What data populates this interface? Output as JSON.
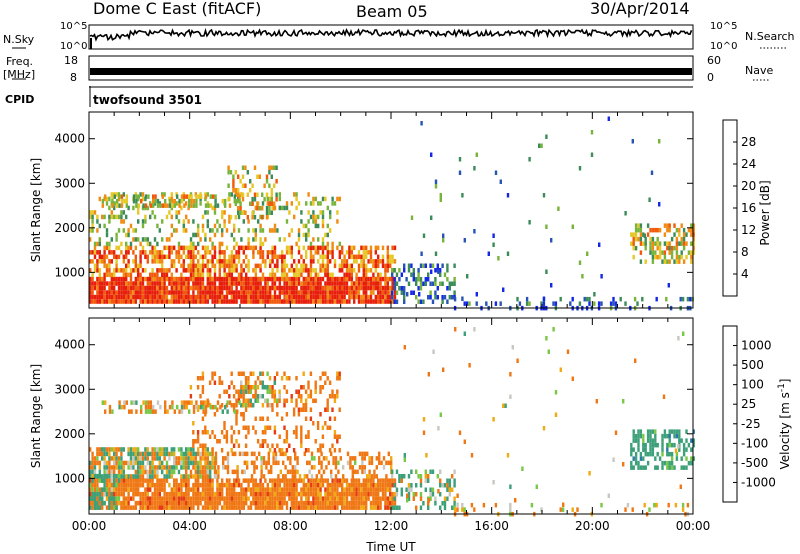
{
  "header": {
    "title": "Dome C East (fitACF)",
    "beam": "Beam 05",
    "date": "30/Apr/2014"
  },
  "top_panels": {
    "nsky_label": "N.Sky",
    "nsky_ticks": [
      "10^5",
      "10^0"
    ],
    "nsearch_label": "N.Search",
    "nsearch_ticks": [
      "10^5",
      "10^0"
    ],
    "freq_label": "Freq.",
    "freq_unit": "[MHz]",
    "freq_ticks": [
      "18",
      "8"
    ],
    "nave_label": "Nave",
    "nave_ticks": [
      "60",
      "0"
    ],
    "cpid_label": "CPID",
    "cpid_value": "twofsound 3501"
  },
  "chart_data": [
    {
      "type": "heatmap",
      "name": "power",
      "xlabel": "",
      "ylabel": "Slant Range [km]",
      "xlim": [
        0,
        24
      ],
      "ylim": [
        200,
        4600
      ],
      "yticks": [
        "1000",
        "2000",
        "3000",
        "4000"
      ],
      "colorbar": {
        "label": "Power [dB]",
        "tick_labels": [
          "28",
          "24",
          "20",
          "16",
          "12",
          "8",
          "4"
        ],
        "range": [
          0,
          32
        ],
        "colors": [
          "#1428e6",
          "#2855b4",
          "#3c8c5a",
          "#78b43c",
          "#e6c828",
          "#f08c14",
          "#f05a0a",
          "#e61e0a"
        ]
      },
      "regions": [
        {
          "t": [
            0.0,
            12.2
          ],
          "r": [
            300,
            900
          ],
          "value": 30,
          "coverage": 0.95
        },
        {
          "t": [
            0.0,
            12.2
          ],
          "r": [
            900,
            1600
          ],
          "value": 24,
          "coverage": 0.6
        },
        {
          "t": [
            0.0,
            10.0
          ],
          "r": [
            1600,
            2800
          ],
          "value": 16,
          "coverage": 0.25
        },
        {
          "t": [
            5.5,
            7.5
          ],
          "r": [
            2200,
            3400
          ],
          "value": 18,
          "coverage": 0.35
        },
        {
          "t": [
            0.5,
            6.0
          ],
          "r": [
            2500,
            2750
          ],
          "value": 18,
          "coverage": 0.5
        },
        {
          "t": [
            12.0,
            14.5
          ],
          "r": [
            300,
            1200
          ],
          "value": 7,
          "coverage": 0.4
        },
        {
          "t": [
            14.5,
            24.0
          ],
          "r": [
            200,
            450
          ],
          "value": 6,
          "coverage": 0.2
        },
        {
          "t": [
            21.5,
            24.0
          ],
          "r": [
            1200,
            2100
          ],
          "value": 18,
          "coverage": 0.5
        },
        {
          "t": [
            12.5,
            24.0
          ],
          "r": [
            450,
            4500
          ],
          "value": 8,
          "coverage": 0.012
        }
      ]
    },
    {
      "type": "heatmap",
      "name": "velocity",
      "xlabel": "Time UT",
      "ylabel": "Slant Range [km]",
      "xlim": [
        0,
        24
      ],
      "ylim": [
        200,
        4600
      ],
      "xticks": [
        "00:00",
        "04:00",
        "08:00",
        "12:00",
        "16:00",
        "20:00",
        "00:00"
      ],
      "yticks": [
        "1000",
        "2000",
        "3000",
        "4000"
      ],
      "colorbar": {
        "label": "Velocity [m s^-1]",
        "tick_labels": [
          "1000",
          "500",
          "100",
          "25",
          "-25",
          "-100",
          "-500",
          "-1000"
        ],
        "colors": [
          "#1e3cc8",
          "#2d78aa",
          "#3ca078",
          "#78c846",
          "#c8c8c0",
          "#f0aa14",
          "#f07814",
          "#e63c14",
          "#e61414"
        ]
      },
      "regions": [
        {
          "t": [
            0.0,
            12.2
          ],
          "r": [
            300,
            1000
          ],
          "value": -300,
          "coverage": 0.9
        },
        {
          "t": [
            0.0,
            5.0
          ],
          "r": [
            1000,
            1700
          ],
          "value": 0,
          "coverage": 0.75
        },
        {
          "t": [
            5.0,
            12.0
          ],
          "r": [
            1000,
            1600
          ],
          "value": -200,
          "coverage": 0.4
        },
        {
          "t": [
            0.0,
            1.2
          ],
          "r": [
            300,
            1100
          ],
          "value": 200,
          "coverage": 0.6
        },
        {
          "t": [
            4.0,
            10.0
          ],
          "r": [
            1600,
            3400
          ],
          "value": -300,
          "coverage": 0.25
        },
        {
          "t": [
            6.0,
            7.6
          ],
          "r": [
            2600,
            3400
          ],
          "value": 0,
          "coverage": 0.4
        },
        {
          "t": [
            0.5,
            6.0
          ],
          "r": [
            2500,
            2750
          ],
          "value": -100,
          "coverage": 0.5
        },
        {
          "t": [
            12.0,
            14.5
          ],
          "r": [
            300,
            1200
          ],
          "value": 100,
          "coverage": 0.35
        },
        {
          "t": [
            14.5,
            24.0
          ],
          "r": [
            200,
            450
          ],
          "value": -150,
          "coverage": 0.15
        },
        {
          "t": [
            21.5,
            24.0
          ],
          "r": [
            1200,
            2100
          ],
          "value": 300,
          "coverage": 0.5
        },
        {
          "t": [
            12.5,
            24.0
          ],
          "r": [
            450,
            4500
          ],
          "value": -100,
          "coverage": 0.012
        }
      ]
    }
  ]
}
